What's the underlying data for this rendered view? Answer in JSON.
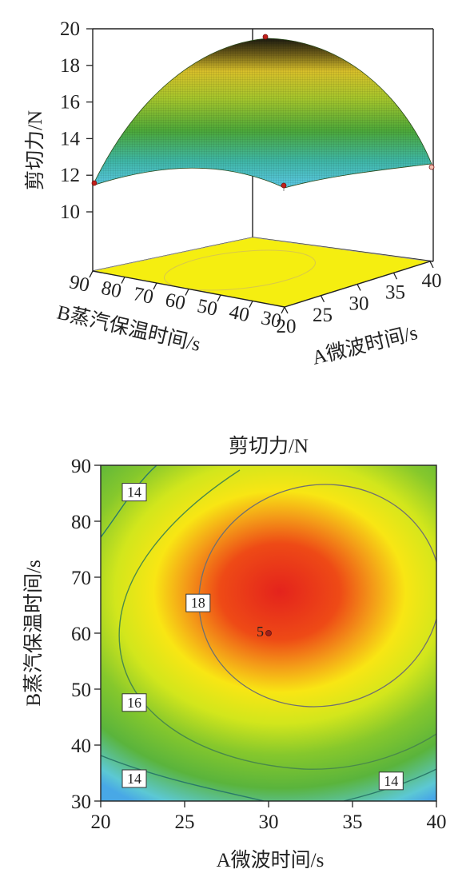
{
  "chart_data": [
    {
      "type": "surface3d",
      "zlabel": "剪切力/N",
      "xlabel": "A微波时间/s",
      "ylabel": "B蒸汽保温时间/s",
      "x_ticks": [
        "20",
        "25",
        "30",
        "35",
        "40"
      ],
      "y_ticks": [
        "30",
        "40",
        "50",
        "60",
        "70",
        "80",
        "90"
      ],
      "z_ticks": [
        "10",
        "12",
        "14",
        "16",
        "18",
        "20"
      ],
      "xlim": [
        20,
        40
      ],
      "ylim": [
        30,
        90
      ],
      "zlim": [
        10,
        20
      ],
      "design_points": [
        {
          "x": 20,
          "y": 90,
          "z": 11.6
        },
        {
          "x": 30,
          "y": 60,
          "z": 19.6
        },
        {
          "x": 30,
          "y": 60,
          "z": 11.4
        },
        {
          "x": 40,
          "y": 30,
          "z": 12.5
        }
      ]
    },
    {
      "type": "contour",
      "title": "剪切力/N",
      "xlabel": "A微波时间/s",
      "ylabel": "B蒸汽保温时间/s",
      "x_ticks": [
        "20",
        "25",
        "30",
        "35",
        "40"
      ],
      "y_ticks": [
        "30",
        "40",
        "50",
        "60",
        "70",
        "80",
        "90"
      ],
      "xlim": [
        20,
        40
      ],
      "ylim": [
        30,
        90
      ],
      "contour_labels": [
        {
          "text": "14",
          "x": 22.0,
          "y": 85.2
        },
        {
          "text": "18",
          "x": 25.8,
          "y": 65.4
        },
        {
          "text": "16",
          "x": 22.0,
          "y": 47.6
        },
        {
          "text": "14",
          "x": 22.0,
          "y": 34.0
        },
        {
          "text": "14",
          "x": 37.3,
          "y": 33.6
        }
      ],
      "center_point": {
        "label": "5",
        "x": 30,
        "y": 60
      }
    }
  ]
}
